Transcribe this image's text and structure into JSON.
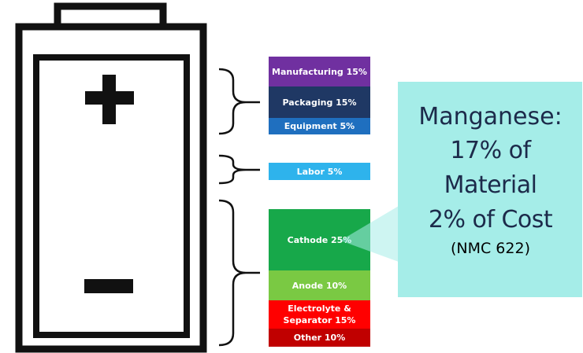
{
  "segments": {
    "manufacturing": "Manufacturing 15%",
    "packaging": "Packaging 15%",
    "equipment": "Equipment 5%",
    "labor": "Labor 5%",
    "cathode": "Cathode 25%",
    "anode": "Anode 10%",
    "electrolyte": "Electrolyte & Separator 15%",
    "other": "Other 10%"
  },
  "callout": {
    "title": "Manganese:",
    "line1": "17% of",
    "line2": "Material",
    "line3": "2% of Cost",
    "note": "(NMC 622)"
  },
  "colors": {
    "manufacturing": "#7030a0",
    "packaging": "#1f3864",
    "equipment": "#1f6fbf",
    "labor": "#2eb3ec",
    "cathode": "#17a84a",
    "anode": "#7ac943",
    "electrolyte": "#ff0000",
    "other": "#c00000",
    "callout": "#a5ede8"
  },
  "icons": [
    "plus-icon",
    "minus-icon",
    "battery-icon"
  ]
}
